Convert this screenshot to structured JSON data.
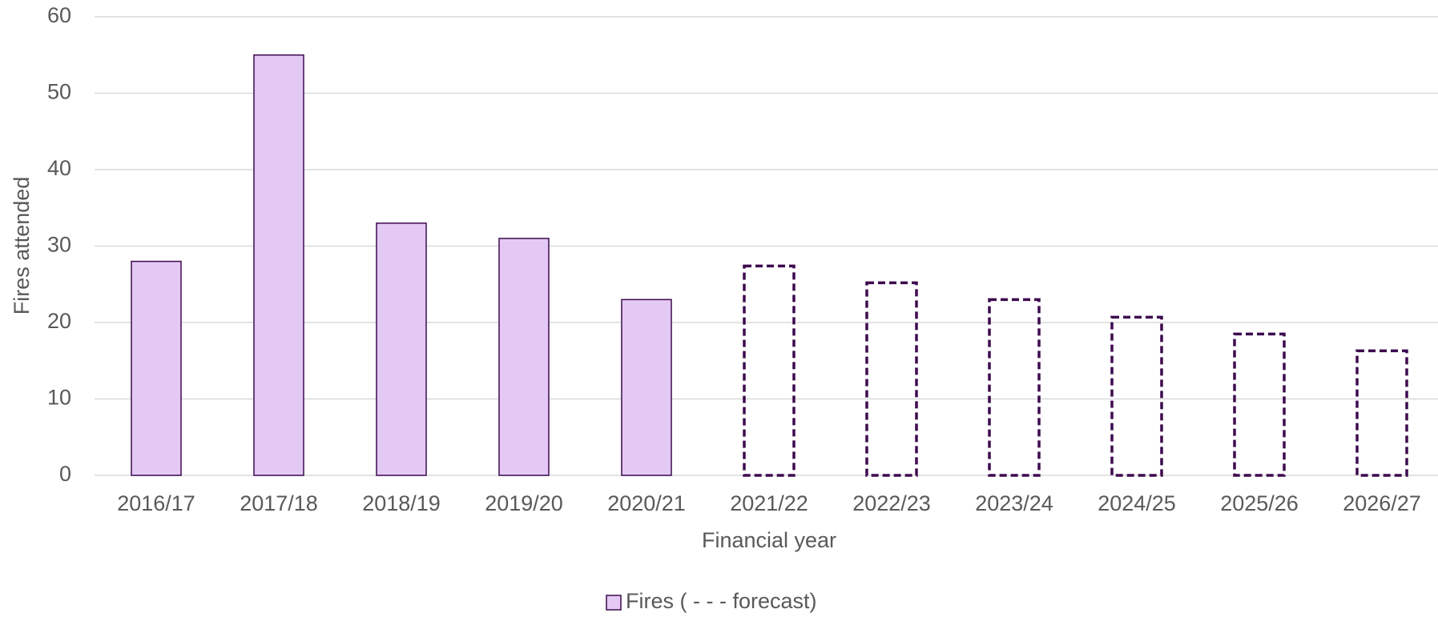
{
  "chart_data": {
    "type": "bar",
    "x_label": "Financial year",
    "y_label": "Fires attended",
    "categories": [
      "2016/17",
      "2017/18",
      "2018/19",
      "2019/20",
      "2020/21",
      "2021/22",
      "2022/23",
      "2023/24",
      "2024/25",
      "2025/26",
      "2026/27"
    ],
    "series": [
      {
        "name": "Fires ( - - - forecast)",
        "color": "#e4c9f4",
        "edge_color": "#3d0a4f",
        "values": [
          28,
          55,
          33,
          31,
          23,
          27.4,
          25.2,
          23,
          20.7,
          18.5,
          16.3
        ],
        "forecast": [
          false,
          false,
          false,
          false,
          false,
          true,
          true,
          true,
          true,
          true,
          true
        ]
      }
    ],
    "ylim": [
      0,
      60
    ],
    "yticks": [
      0,
      10,
      20,
      30,
      40,
      50,
      60
    ],
    "grid": true,
    "legend": "bottom"
  }
}
